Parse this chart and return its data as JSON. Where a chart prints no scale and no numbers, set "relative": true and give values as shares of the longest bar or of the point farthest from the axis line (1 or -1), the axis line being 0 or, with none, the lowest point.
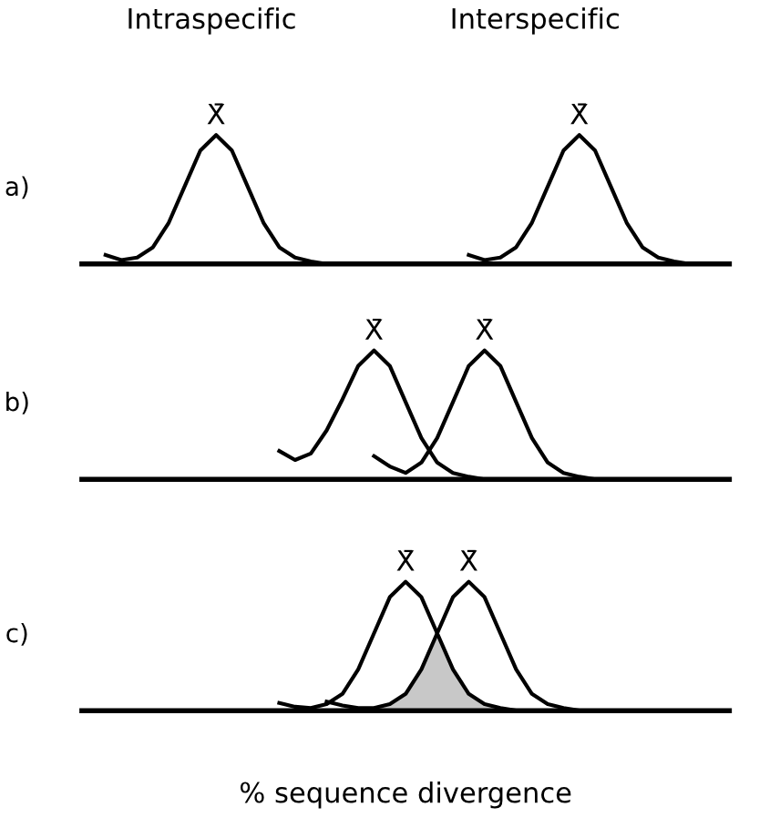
{
  "chart_data": [
    {
      "type": "line",
      "title": "a)",
      "relative": true,
      "annotations": [
        "Intraspecific",
        "Interspecific"
      ],
      "categories": [
        null,
        null,
        null,
        null,
        null,
        null,
        null,
        null,
        null,
        null,
        null,
        null,
        null,
        null,
        null,
        null,
        null,
        null,
        null,
        null,
        null,
        null,
        null,
        null,
        null,
        null,
        null,
        null,
        null,
        null,
        null,
        null,
        null,
        null,
        null,
        null,
        null,
        null,
        null,
        null,
        null
      ],
      "series": [
        {
          "name": "X̄",
          "color": "#000000",
          "values": [
            null,
            0.07,
            0.03,
            0.05,
            0.13,
            0.32,
            0.6,
            0.88,
            1,
            0.88,
            0.6,
            0.32,
            0.13,
            0.05,
            0.02,
            0,
            0,
            0,
            0,
            0,
            0,
            null,
            null,
            null,
            null,
            null,
            null,
            null,
            null,
            null,
            null,
            null,
            null,
            null,
            null,
            null,
            null,
            null,
            null,
            null,
            null
          ]
        },
        {
          "name": "X̄",
          "color": "#000000",
          "values": [
            null,
            null,
            null,
            null,
            null,
            null,
            null,
            null,
            null,
            null,
            null,
            null,
            null,
            null,
            null,
            null,
            null,
            null,
            null,
            null,
            null,
            null,
            null,
            null,
            0.07,
            0.03,
            0.05,
            0.13,
            0.32,
            0.6,
            0.88,
            1,
            0.88,
            0.6,
            0.32,
            0.13,
            0.05,
            0.02,
            0,
            0,
            0
          ]
        }
      ]
    },
    {
      "type": "line",
      "title": "b)",
      "relative": true,
      "categories": [
        null,
        null,
        null,
        null,
        null,
        null,
        null,
        null,
        null,
        null,
        null,
        null,
        null,
        null,
        null,
        null,
        null,
        null,
        null,
        null,
        null,
        null,
        null,
        null,
        null,
        null,
        null,
        null,
        null,
        null,
        null,
        null,
        null,
        null,
        null,
        null,
        null,
        null,
        null,
        null,
        null
      ],
      "series": [
        {
          "name": "X̄",
          "color": "#000000",
          "values": [
            null,
            null,
            null,
            null,
            null,
            null,
            null,
            null,
            null,
            null,
            null,
            null,
            0.22,
            0.15,
            0.2,
            0.38,
            0.62,
            0.88,
            1,
            0.88,
            0.6,
            0.32,
            0.13,
            0.05,
            0.02,
            0,
            0,
            0,
            0,
            null,
            null,
            null,
            null,
            null,
            null,
            null,
            null,
            null,
            null,
            null,
            null
          ]
        },
        {
          "name": "X̄",
          "color": "#000000",
          "values": [
            null,
            null,
            null,
            null,
            null,
            null,
            null,
            null,
            null,
            null,
            null,
            null,
            null,
            null,
            null,
            null,
            null,
            null,
            0.18,
            0.1,
            0.05,
            0.13,
            0.32,
            0.6,
            0.88,
            1,
            0.88,
            0.6,
            0.32,
            0.13,
            0.05,
            0.02,
            0,
            null,
            null,
            null,
            null,
            null,
            null,
            null,
            null
          ]
        }
      ]
    },
    {
      "type": "line",
      "title": "c)",
      "relative": true,
      "xlabel": "% sequence divergence",
      "categories": [
        null,
        null,
        null,
        null,
        null,
        null,
        null,
        null,
        null,
        null,
        null,
        null,
        null,
        null,
        null,
        null,
        null,
        null,
        null,
        null,
        null,
        null,
        null,
        null,
        null,
        null,
        null,
        null,
        null,
        null,
        null,
        null,
        null,
        null,
        null,
        null,
        null,
        null,
        null,
        null,
        null
      ],
      "series": [
        {
          "type": "area",
          "color": "#c8c8c8",
          "values": [
            null,
            null,
            null,
            null,
            null,
            null,
            null,
            null,
            null,
            null,
            null,
            null,
            null,
            null,
            null,
            null,
            null,
            null,
            0.02,
            0.05,
            0.13,
            0.32,
            0.6,
            0.32,
            0.13,
            0.05,
            0.02,
            0,
            null,
            null,
            null,
            null,
            null,
            null,
            null,
            null,
            null,
            null,
            null,
            null,
            null
          ]
        },
        {
          "name": "X̄",
          "color": "#000000",
          "values": [
            null,
            null,
            null,
            null,
            null,
            null,
            null,
            null,
            null,
            null,
            null,
            null,
            0.06,
            0.03,
            0.02,
            0.05,
            0.13,
            0.32,
            0.6,
            0.88,
            1,
            0.88,
            0.6,
            0.32,
            0.13,
            0.05,
            0.02,
            0,
            0,
            0,
            null,
            null,
            null,
            null,
            null,
            null,
            null,
            null,
            null,
            null,
            null
          ]
        },
        {
          "name": "X̄",
          "color": "#000000",
          "values": [
            null,
            null,
            null,
            null,
            null,
            null,
            null,
            null,
            null,
            null,
            null,
            null,
            null,
            null,
            null,
            0.07,
            0.04,
            0.02,
            0.02,
            0.05,
            0.13,
            0.32,
            0.6,
            0.88,
            1,
            0.88,
            0.6,
            0.32,
            0.13,
            0.05,
            0.02,
            0,
            0,
            0,
            null,
            null,
            null,
            null,
            null,
            null,
            null
          ]
        }
      ]
    }
  ]
}
